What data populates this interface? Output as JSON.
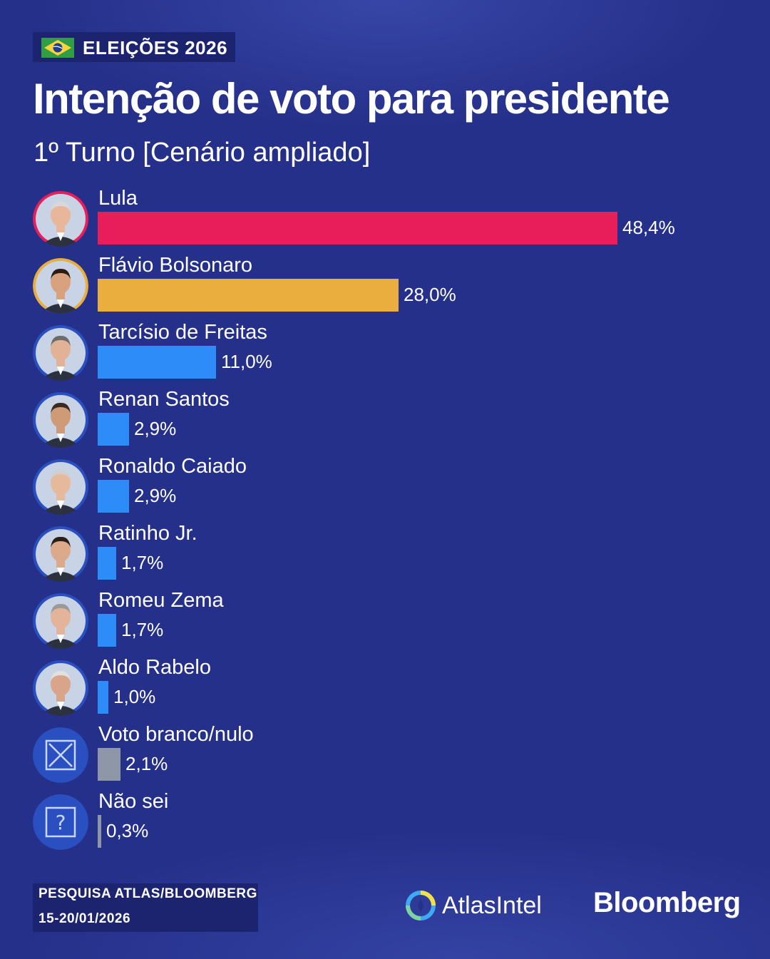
{
  "header": {
    "tag": "ELEIÇÕES 2026",
    "title": "Intenção de voto para presidente",
    "subtitle": "1º Turno [Cenário ampliado]"
  },
  "chart_data": {
    "type": "bar",
    "orientation": "horizontal",
    "title": "Intenção de voto para presidente",
    "subtitle": "1º Turno [Cenário ampliado]",
    "categories": [
      "Lula",
      "Flávio Bolsonaro",
      "Tarcísio de Freitas",
      "Renan Santos",
      "Ronaldo Caiado",
      "Ratinho Jr.",
      "Romeu Zema",
      "Aldo Rabelo",
      "Voto branco/nulo",
      "Não sei"
    ],
    "values": [
      48.4,
      28.0,
      11.0,
      2.9,
      2.9,
      1.7,
      1.7,
      1.0,
      2.1,
      0.3
    ],
    "labels": [
      "48,4%",
      "28,0%",
      "11,0%",
      "2,9%",
      "2,9%",
      "1,7%",
      "1,7%",
      "1,0%",
      "2,1%",
      "0,3%"
    ],
    "colors": [
      "#e81e5a",
      "#e9ae3e",
      "#2d8cf8",
      "#2d8cf8",
      "#2d8cf8",
      "#2d8cf8",
      "#2d8cf8",
      "#2d8cf8",
      "#8e97a8",
      "#8e97a8"
    ],
    "icons": [
      "photo-lula",
      "photo-flavio-bolsonaro",
      "photo-tarcisio",
      "photo-renan-santos",
      "photo-ronaldo-caiado",
      "photo-ratinho-jr",
      "photo-romeu-zema",
      "photo-aldo-rabelo",
      "ballot-x-icon",
      "question-icon"
    ],
    "xlim": [
      0,
      100
    ],
    "unit": "%"
  },
  "footer": {
    "source_line1": "PESQUISA ATLAS/BLOOMBERG",
    "source_line2": "15-20/01/2026",
    "logo_atlas": "AtlasIntel",
    "logo_bloomberg": "Bloomberg"
  },
  "colors": {
    "background": "#25308a",
    "tag_background": "#1c2470"
  }
}
